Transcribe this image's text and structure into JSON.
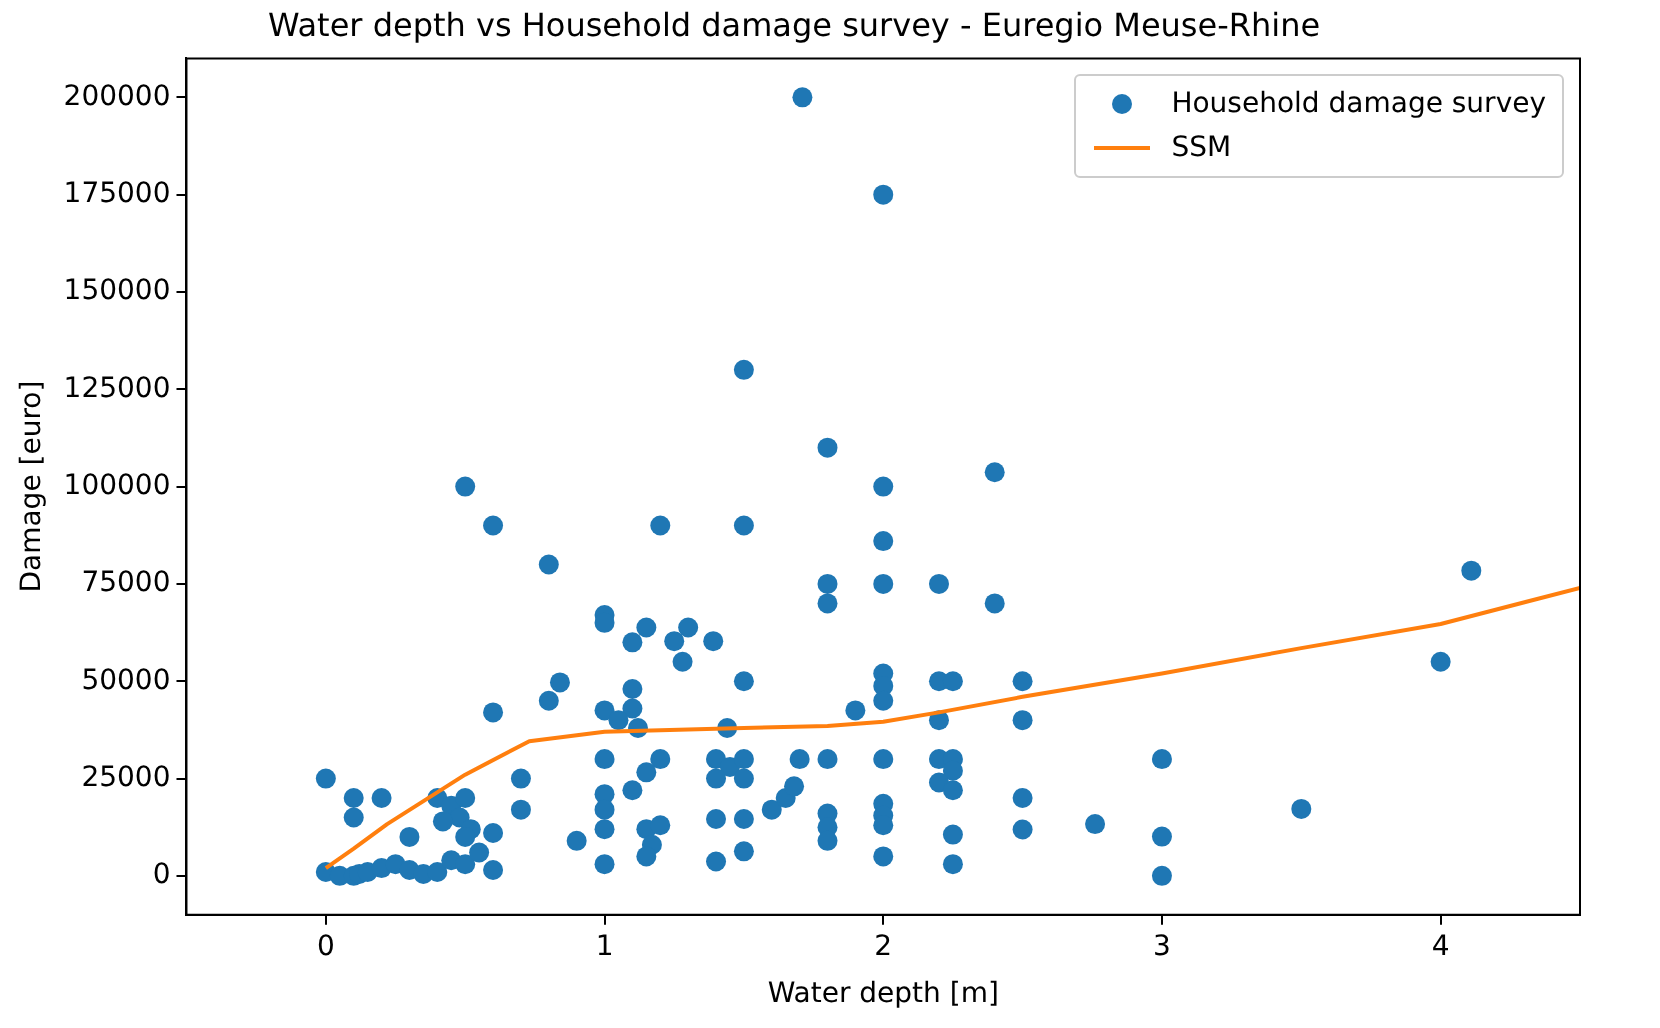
{
  "chart_data": {
    "type": "scatter",
    "title": "Water depth vs Household damage survey - Euregio Meuse-Rhine",
    "xlabel": "Water depth [m]",
    "ylabel": "Damage [euro]",
    "xlim": [
      -0.5,
      4.5
    ],
    "xticks": [
      0,
      1,
      2,
      3,
      4
    ],
    "ylim": [
      -10000,
      210000
    ],
    "yticks": [
      0,
      25000,
      50000,
      75000,
      100000,
      125000,
      150000,
      175000,
      200000
    ],
    "grid": false,
    "legend": "top right",
    "series": [
      {
        "name": "Household damage survey",
        "type": "scatter",
        "marker": "circle",
        "color": "#1f77b4",
        "x": [
          1.71,
          2.0,
          1.5,
          1.8,
          2.0,
          0.5,
          0.6,
          1.2,
          1.5,
          2.0,
          2.4,
          0.8,
          1.8,
          1.8,
          2.0,
          1.0,
          1.0,
          1.1,
          1.15,
          1.25,
          1.3,
          1.28,
          1.39,
          1.5,
          0.8,
          0.84,
          0.6,
          1.0,
          1.1,
          1.1,
          1.12,
          1.05,
          1.44,
          1.9,
          2.0,
          2.0,
          0.0,
          1.0,
          1.4,
          1.45,
          1.5,
          1.5,
          1.4,
          1.7,
          1.8,
          2.0,
          1.2,
          1.15,
          1.1,
          0.7,
          0.7,
          0.1,
          0.1,
          0.2,
          0.4,
          0.45,
          0.5,
          0.48,
          0.42,
          0.52,
          0.5,
          0.3,
          0.6,
          0.9,
          1.0,
          1.0,
          1.0,
          1.0,
          1.15,
          1.2,
          1.17,
          1.15,
          1.4,
          1.5,
          1.5,
          1.4,
          1.6,
          1.65,
          1.68,
          1.8,
          1.8,
          1.8,
          2.0,
          2.0,
          2.0,
          2.0,
          0.0,
          0.05,
          0.1,
          0.12,
          0.15,
          0.2,
          0.25,
          0.3,
          0.35,
          0.4,
          0.45,
          0.5,
          0.55,
          0.6,
          2.2,
          2.4,
          2.0,
          2.2,
          2.25,
          2.2,
          2.5,
          2.5,
          2.2,
          2.25,
          2.25,
          2.2,
          2.25,
          2.25,
          2.25,
          2.5,
          2.5,
          2.76,
          3.0,
          3.0,
          3.0,
          3.5,
          4.0,
          4.11
        ],
        "values": [
          200000,
          175000,
          130000,
          110000,
          100000,
          100000,
          90000,
          90000,
          90000,
          86000,
          103700,
          80000,
          75000,
          70000,
          75000,
          67000,
          65000,
          60000,
          63800,
          60300,
          63800,
          55000,
          60300,
          50000,
          45000,
          49700,
          42000,
          42500,
          48000,
          43000,
          38000,
          40000,
          38000,
          42500,
          52000,
          48800,
          25000,
          30000,
          30000,
          28000,
          30000,
          25000,
          25000,
          30000,
          30000,
          30000,
          30000,
          26600,
          22000,
          25000,
          17000,
          20000,
          15000,
          20000,
          20000,
          18000,
          20000,
          15000,
          14000,
          12000,
          10000,
          10000,
          11000,
          9000,
          21000,
          17000,
          12000,
          3000,
          12000,
          13000,
          8000,
          5000,
          14600,
          14600,
          6300,
          3700,
          17000,
          20000,
          23000,
          16000,
          12500,
          9000,
          18500,
          15500,
          13000,
          5000,
          1000,
          0,
          0,
          500,
          1000,
          2000,
          3000,
          1500,
          500,
          1000,
          4000,
          3000,
          6000,
          1500,
          75000,
          70000,
          45000,
          50000,
          50000,
          40000,
          50000,
          40000,
          30000,
          30000,
          27000,
          24000,
          22000,
          10600,
          3000,
          20000,
          11900,
          13300,
          30000,
          10100,
          0,
          17200,
          55000,
          78400
        ]
      },
      {
        "name": "SSM",
        "type": "line",
        "marker": "none",
        "color": "#ff7f0e",
        "x": [
          0,
          0.1,
          0.22,
          0.5,
          0.73,
          1.0,
          1.5,
          1.8,
          2.0,
          2.2,
          2.5,
          3.0,
          3.5,
          4.0,
          4.5
        ],
        "values": [
          2000,
          7000,
          13300,
          26000,
          34600,
          37000,
          38000,
          38500,
          39600,
          42000,
          46000,
          52000,
          58500,
          64700,
          74000
        ]
      }
    ]
  }
}
